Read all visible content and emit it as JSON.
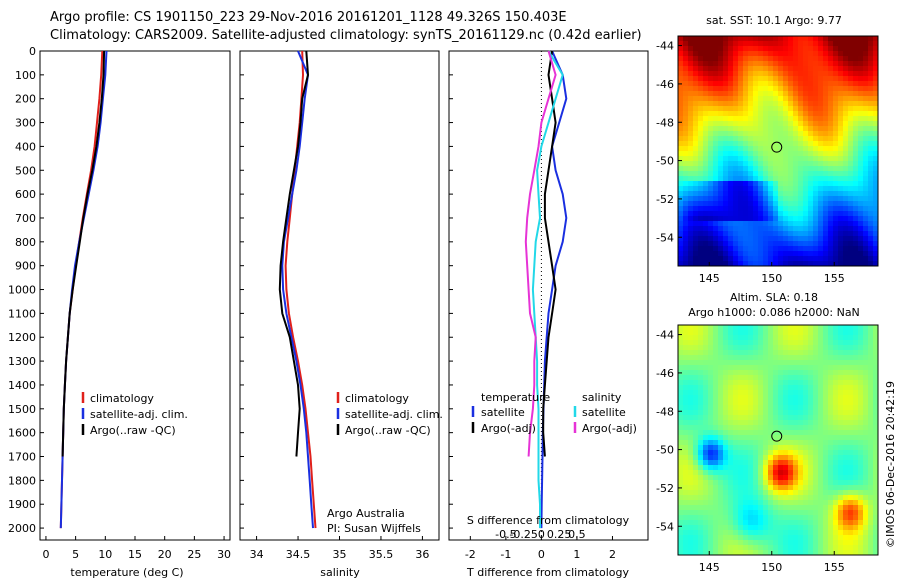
{
  "title_line1": "Argo profile: CS 1901150_223 29-Nov-2016 20161201_1128 49.326S 150.403E",
  "title_line2": "Climatology: CARS2009. Satellite-adjusted climatology: synTS_20161129.nc (0.42d earlier)",
  "colors": {
    "climatology": "#e0201b",
    "satellite": "#1a2fe0",
    "argo": "#000000",
    "salinity_sat": "#22d8e8",
    "salinity_argo": "#e633d6"
  },
  "depth_ticks": [
    "0",
    "100",
    "200",
    "300",
    "400",
    "500",
    "600",
    "700",
    "800",
    "900",
    "1000",
    "1100",
    "1200",
    "1300",
    "1400",
    "1500",
    "1600",
    "1700",
    "1800",
    "1900",
    "2000"
  ],
  "legend": {
    "climatology": "climatology",
    "satellite_clim": "satellite-adj. clim.",
    "argo_raw_qc": "Argo(..raw -QC)",
    "temperature": "temperature",
    "salinity": "salinity",
    "satellite": "satellite",
    "argo_adj": "Argo(-adj)"
  },
  "argo_australia": "Argo Australia",
  "pi": "PI: Susan Wijffels",
  "sst_label": "sat. SST: 10.1  Argo: 9.77",
  "altim_line1": "Altim. SLA: 0.18",
  "altim_line2": "Argo h1000: 0.086 h2000: NaN",
  "copyright": "©IMOS 06-Dec-2016 20:42:19",
  "chart_data": [
    {
      "type": "line",
      "name": "temperature profile",
      "xlabel": "temperature (deg C)",
      "ylabel": "",
      "xlim": [
        -1,
        31
      ],
      "ylim": [
        2050,
        0
      ],
      "xticks": [
        "0",
        "5",
        "10",
        "15",
        "20",
        "25",
        "30"
      ],
      "depth": [
        0,
        100,
        200,
        300,
        400,
        500,
        600,
        700,
        800,
        900,
        1000,
        1100,
        1200,
        1300,
        1400,
        1500,
        1600,
        1700,
        1800,
        1900,
        2000
      ],
      "series": [
        {
          "name": "climatology",
          "color": "#e0201b",
          "values": [
            9.5,
            9.3,
            9.0,
            8.6,
            8.2,
            7.6,
            6.9,
            6.2,
            5.6,
            5.0,
            4.5,
            4.0,
            3.7,
            3.4,
            3.2,
            3.0,
            2.9,
            2.8,
            2.7,
            2.6,
            2.5
          ]
        },
        {
          "name": "satellite-adj. clim.",
          "color": "#1a2fe0",
          "values": [
            10.2,
            10.0,
            9.6,
            9.2,
            8.7,
            8.0,
            7.2,
            6.4,
            5.6,
            4.9,
            4.4,
            4.0,
            3.7,
            3.4,
            3.2,
            3.0,
            2.9,
            2.8,
            2.7,
            2.6,
            2.5
          ]
        },
        {
          "name": "Argo(..raw -QC)",
          "color": "#000000",
          "values": [
            9.8,
            9.7,
            9.4,
            9.0,
            8.5,
            7.8,
            7.0,
            6.3,
            5.7,
            5.1,
            4.5,
            4.0,
            3.7,
            3.4,
            3.2,
            3.0,
            2.9,
            2.8
          ]
        }
      ]
    },
    {
      "type": "line",
      "name": "salinity profile",
      "xlabel": "salinity",
      "ylabel": "",
      "xlim": [
        33.8,
        36.2
      ],
      "ylim": [
        2050,
        0
      ],
      "xticks": [
        "34",
        "34.5",
        "35",
        "35.5",
        "36"
      ],
      "depth": [
        0,
        100,
        200,
        300,
        400,
        500,
        600,
        700,
        800,
        900,
        1000,
        1100,
        1200,
        1300,
        1400,
        1500,
        1600,
        1700,
        1800,
        1900,
        2000
      ],
      "series": [
        {
          "name": "climatology",
          "color": "#e0201b",
          "values": [
            34.55,
            34.56,
            34.54,
            34.52,
            34.49,
            34.46,
            34.43,
            34.4,
            34.37,
            34.35,
            34.36,
            34.39,
            34.44,
            34.5,
            34.55,
            34.59,
            34.62,
            34.65,
            34.67,
            34.69,
            34.71
          ]
        },
        {
          "name": "satellite-adj. clim.",
          "color": "#1a2fe0",
          "values": [
            34.5,
            34.62,
            34.58,
            34.55,
            34.52,
            34.48,
            34.43,
            34.38,
            34.33,
            34.31,
            34.32,
            34.36,
            34.42,
            34.48,
            34.53,
            34.57,
            34.6,
            34.62,
            34.64,
            34.66,
            34.68
          ]
        },
        {
          "name": "Argo(..raw -QC)",
          "color": "#000000",
          "values": [
            34.6,
            34.62,
            34.55,
            34.53,
            34.5,
            34.45,
            34.4,
            34.36,
            34.32,
            34.29,
            34.28,
            34.31,
            34.4,
            34.45,
            34.5,
            34.52,
            34.5,
            34.48
          ]
        }
      ]
    },
    {
      "type": "line",
      "name": "difference from climatology",
      "xlabel": "T difference from climatology",
      "ylabel": "",
      "top_xlabel": "S difference from climatology",
      "xlim": [
        -2.6,
        3.0
      ],
      "ylim": [
        2050,
        0
      ],
      "xticks": [
        "-2",
        "-1",
        "0",
        "1",
        "2"
      ],
      "top_xticks": [
        "-0.5",
        "-0.25",
        "0",
        "0.25",
        "0.5"
      ],
      "depth": [
        0,
        100,
        200,
        300,
        400,
        500,
        600,
        700,
        800,
        900,
        1000,
        1100,
        1200,
        1300,
        1400,
        1500,
        1600,
        1700,
        1800,
        1900,
        2000
      ],
      "series": [
        {
          "name": "temperature satellite",
          "color": "#1a2fe0",
          "values": [
            0.3,
            0.6,
            0.7,
            0.5,
            0.3,
            0.4,
            0.6,
            0.7,
            0.6,
            0.4,
            0.3,
            0.2,
            0.15,
            0.1,
            0.08,
            0.06,
            0.04,
            0.03,
            0.02,
            0.01,
            0.0
          ]
        },
        {
          "name": "temperature Argo(-adj)",
          "color": "#000000",
          "values": [
            0.3,
            0.2,
            0.3,
            0.4,
            0.3,
            0.2,
            0.1,
            0.1,
            0.2,
            0.3,
            0.4,
            0.3,
            0.2,
            0.15,
            0.1,
            0.05,
            0.05,
            0.1
          ]
        },
        {
          "name": "salinity satellite",
          "color": "#22d8e8",
          "values": [
            0.05,
            0.15,
            0.1,
            0.05,
            0.0,
            -0.03,
            -0.02,
            -0.01,
            -0.04,
            -0.05,
            -0.06,
            -0.05,
            -0.04,
            -0.03,
            -0.03,
            -0.02,
            -0.02,
            -0.02,
            -0.02,
            -0.01,
            -0.01
          ]
        },
        {
          "name": "salinity Argo(-adj)",
          "color": "#e633d6",
          "values": [
            0.05,
            0.1,
            0.05,
            0.0,
            -0.02,
            -0.05,
            -0.08,
            -0.1,
            -0.11,
            -0.1,
            -0.09,
            -0.08,
            -0.04,
            -0.05,
            -0.05,
            -0.06,
            -0.08,
            -0.09
          ]
        }
      ]
    },
    {
      "type": "heatmap",
      "name": "satellite SST map",
      "title": "sat. SST: 10.1  Argo: 9.77",
      "xlim": [
        142.5,
        158.5
      ],
      "ylim": [
        -55.5,
        -43.5
      ],
      "xticks": [
        "145",
        "150",
        "155"
      ],
      "yticks": [
        "-44",
        "-46",
        "-48",
        "-50",
        "-52",
        "-54"
      ],
      "float_position": [
        150.4,
        -49.3
      ]
    },
    {
      "type": "heatmap",
      "name": "altimetry SLA map",
      "title": "Altim. SLA: 0.18",
      "xlim": [
        142.5,
        158.5
      ],
      "ylim": [
        -55.5,
        -43.5
      ],
      "xticks": [
        "145",
        "150",
        "155"
      ],
      "yticks": [
        "-44",
        "-46",
        "-48",
        "-50",
        "-52",
        "-54"
      ],
      "float_position": [
        150.4,
        -49.3
      ]
    }
  ]
}
